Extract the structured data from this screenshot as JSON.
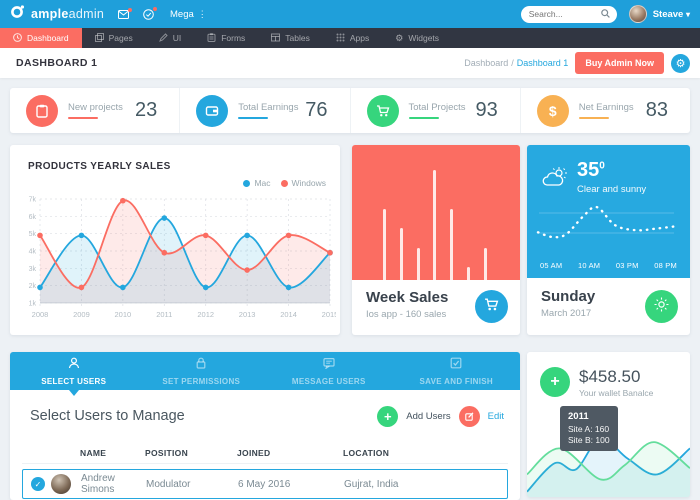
{
  "colors": {
    "header_blue": "#1f9fda",
    "nav_dark": "#313642",
    "accent_red": "#fb6d62",
    "accent_blue": "#24a7de",
    "accent_green": "#36d57d",
    "accent_orange": "#f8b153",
    "bg": "#edf1f5",
    "text_dark": "#455a64",
    "text_muted": "#99a6ad"
  },
  "header": {
    "brand_bold": "ample",
    "brand_light": "admin",
    "mega_label": "Mega",
    "search_placeholder": "Search...",
    "user_name": "Steave",
    "caret": "▾",
    "dots": "⋮"
  },
  "nav": {
    "items": [
      {
        "label": "Dashboard",
        "active": true
      },
      {
        "label": "Pages"
      },
      {
        "label": "UI"
      },
      {
        "label": "Forms"
      },
      {
        "label": "Tables"
      },
      {
        "label": "Apps"
      },
      {
        "label": "Widgets"
      }
    ]
  },
  "breadcrumb": {
    "title": "DASHBOARD 1",
    "path": "Dashboard",
    "sep": "/",
    "current": "Dashboard 1",
    "buy_label": "Buy Admin Now",
    "gear": "⚙"
  },
  "stats": [
    {
      "label": "New projects",
      "value": "23",
      "color": "#fb6d62",
      "icon": "clipboard-icon"
    },
    {
      "label": "Total Earnings",
      "value": "76",
      "color": "#24a7de",
      "icon": "wallet-icon"
    },
    {
      "label": "Total Projects",
      "value": "93",
      "color": "#36d57d",
      "icon": "cart-icon"
    },
    {
      "label": "Net Earnings",
      "value": "83",
      "color": "#f8b153",
      "icon": "dollar-icon"
    }
  ],
  "products_sales": {
    "title": "PRODUCTS YEARLY SALES",
    "legend": [
      {
        "label": "Mac",
        "color": "#24a7de"
      },
      {
        "label": "Windows",
        "color": "#fb6d62"
      }
    ]
  },
  "chart_data": [
    {
      "id": "products_yearly_sales",
      "type": "line",
      "title": "PRODUCTS YEARLY SALES",
      "categories": [
        "2008",
        "2009",
        "2010",
        "2011",
        "2012",
        "2013",
        "2014",
        "2015"
      ],
      "series": [
        {
          "name": "Mac",
          "color": "#24a7de",
          "values": [
            1.9,
            4.9,
            1.9,
            5.9,
            1.9,
            4.9,
            1.9,
            3.9
          ]
        },
        {
          "name": "Windows",
          "color": "#fb6d62",
          "values": [
            4.9,
            1.9,
            6.9,
            3.9,
            4.9,
            2.9,
            4.9,
            3.9
          ]
        }
      ],
      "ylim": [
        1,
        7
      ],
      "ytick_suffix": "k",
      "grid": "dashed",
      "legend_position": "top-right"
    },
    {
      "id": "week_sales_bars",
      "type": "bar",
      "values": [
        55,
        40,
        25,
        85,
        55,
        10,
        25
      ],
      "ylim": [
        0,
        85
      ],
      "bar_color": "#ffffff"
    },
    {
      "id": "weather_line",
      "type": "line",
      "style": "dotted",
      "x": [
        0,
        0.1,
        0.2,
        0.32,
        0.42,
        0.55,
        0.7,
        0.85,
        1
      ],
      "values": [
        0.35,
        0.24,
        0.3,
        0.72,
        0.95,
        0.52,
        0.4,
        0.44,
        0.5
      ]
    },
    {
      "id": "wallet_area",
      "type": "area",
      "series": [
        {
          "name": "Site A",
          "color": "#24a7de",
          "x": [
            0,
            0.17,
            0.3,
            0.45,
            0.62,
            0.8,
            1
          ],
          "values": [
            2,
            48,
            38,
            88,
            55,
            30,
            72
          ]
        },
        {
          "name": "Site B",
          "color": "#64dd9c",
          "x": [
            0,
            0.2,
            0.45,
            0.6,
            0.78,
            1
          ],
          "values": [
            30,
            72,
            22,
            45,
            82,
            40
          ]
        }
      ]
    }
  ],
  "week_sales": {
    "title": "Week Sales",
    "subtitle": "Ios app - 160 sales"
  },
  "weather": {
    "temp": "35",
    "deg": "0",
    "condition": "Clear and sunny",
    "times": [
      "05 AM",
      "10 AM",
      "03 PM",
      "08 PM"
    ],
    "day": "Sunday",
    "month": "March 2017"
  },
  "wizard": {
    "tabs": [
      {
        "label": "SELECT USERS",
        "icon": "user-icon",
        "active": true
      },
      {
        "label": "SET PERMISSIONS",
        "icon": "lock-icon"
      },
      {
        "label": "MESSAGE USERS",
        "icon": "message-icon"
      },
      {
        "label": "SAVE AND FINISH",
        "icon": "check-square-icon"
      }
    ]
  },
  "manage": {
    "title": "Select Users to Manage",
    "add_label": "Add Users",
    "edit_label": "Edit",
    "check": "✓"
  },
  "users_table": {
    "headers": [
      "NAME",
      "POSITION",
      "JOINED",
      "LOCATION"
    ],
    "rows": [
      {
        "name": "Andrew Simons",
        "position": "Modulator",
        "joined": "6 May 2016",
        "location": "Gujrat, India"
      }
    ]
  },
  "wallet": {
    "amount": "$458.50",
    "label": "Your wallet Banalce",
    "tooltip": {
      "year": "2011",
      "line1": "Site A: 160",
      "line2": "Site B: 100"
    }
  }
}
